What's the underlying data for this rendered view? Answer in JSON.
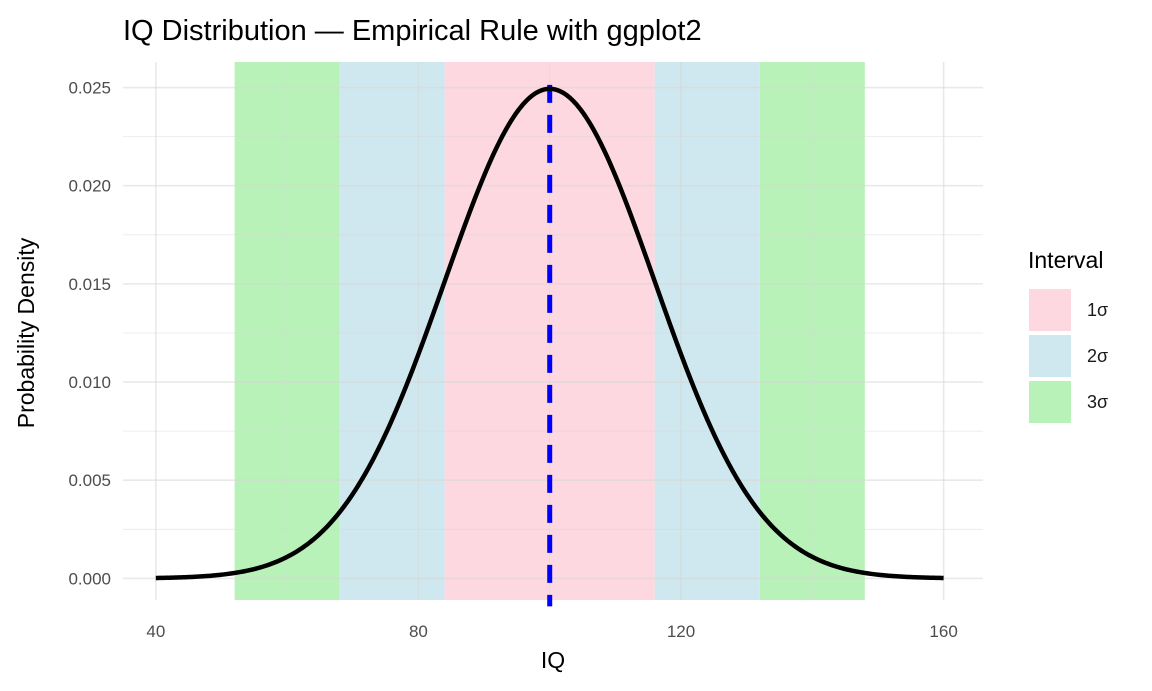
{
  "chart_data": {
    "type": "area",
    "title": "IQ Distribution — Empirical Rule with ggplot2",
    "xlabel": "IQ",
    "ylabel": "Probability Density",
    "xlim": [
      35,
      166
    ],
    "ylim": [
      -0.0011,
      0.0263
    ],
    "x_ticks": [
      40,
      80,
      120,
      160
    ],
    "x_tick_labels": [
      "40",
      "80",
      "120",
      "160"
    ],
    "y_ticks": [
      0.0,
      0.005,
      0.01,
      0.015,
      0.02,
      0.025
    ],
    "y_tick_labels": [
      "0.000",
      "0.005",
      "0.010",
      "0.015",
      "0.020",
      "0.025"
    ],
    "grid": true,
    "distribution": {
      "name": "normal",
      "mean": 100,
      "sd": 16,
      "x_range": [
        40,
        160
      ]
    },
    "mean_line": {
      "x": 100,
      "color": "#0000ff",
      "style": "dashed"
    },
    "curve_color": "#000000",
    "bands": [
      {
        "interval": "3σ",
        "x_start": 52,
        "x_end": 68,
        "color": "#b9f2b9"
      },
      {
        "interval": "2σ",
        "x_start": 68,
        "x_end": 84,
        "color": "#cfe7ee"
      },
      {
        "interval": "1σ",
        "x_start": 84,
        "x_end": 116,
        "color": "#fdd8e0"
      },
      {
        "interval": "2σ",
        "x_start": 116,
        "x_end": 132,
        "color": "#cfe7ee"
      },
      {
        "interval": "3σ",
        "x_start": 132,
        "x_end": 148,
        "color": "#b9f2b9"
      }
    ],
    "legend": {
      "title": "Interval",
      "position": "right",
      "items": [
        {
          "label": "1σ",
          "color": "#fdd8e0"
        },
        {
          "label": "2σ",
          "color": "#cfe7ee"
        },
        {
          "label": "3σ",
          "color": "#b9f2b9"
        }
      ]
    }
  }
}
